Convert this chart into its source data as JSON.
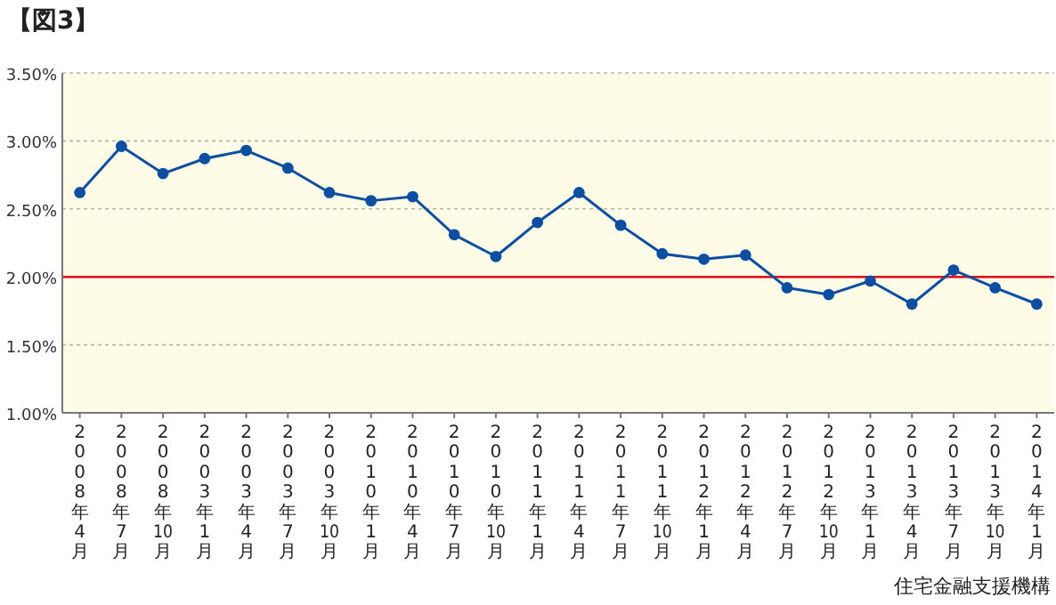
{
  "chart_data": {
    "type": "line",
    "title": "【図3】",
    "categories": [
      "2008年4月",
      "2008年7月",
      "2008年10月",
      "2003年1月",
      "2003年4月",
      "2003年7月",
      "2003年10月",
      "2010年1月",
      "2010年4月",
      "2010年7月",
      "2010年10月",
      "2011年1月",
      "2011年4月",
      "2011年7月",
      "2011年10月",
      "2012年1月",
      "2012年4月",
      "2012年7月",
      "2012年10月",
      "2013年1月",
      "2013年4月",
      "2013年7月",
      "2013年10月",
      "2014年1月"
    ],
    "series": [
      {
        "color": "#0b4ea2",
        "values": [
          2.62,
          2.96,
          2.76,
          2.87,
          2.93,
          2.8,
          2.62,
          2.56,
          2.59,
          2.31,
          2.15,
          2.4,
          2.62,
          2.38,
          2.17,
          2.13,
          2.16,
          1.92,
          1.87,
          1.97,
          1.8,
          2.05,
          1.92,
          1.8
        ]
      }
    ],
    "ylim": [
      1.0,
      3.5
    ],
    "yticks": [
      {
        "value": 1.0,
        "label": "1.00%"
      },
      {
        "value": 1.5,
        "label": "1.50%"
      },
      {
        "value": 2.0,
        "label": "2.00%"
      },
      {
        "value": 2.5,
        "label": "2.50%"
      },
      {
        "value": 3.0,
        "label": "3.00%"
      },
      {
        "value": 3.5,
        "label": "3.50%"
      }
    ],
    "ref_lines": [
      {
        "axis": "y",
        "value": 2.0,
        "color": "#e60012",
        "line_style": "solid"
      }
    ],
    "grid": "y",
    "marker": "circle",
    "line_style": "solid",
    "annotations": [
      "住宅金融支援機構"
    ]
  }
}
